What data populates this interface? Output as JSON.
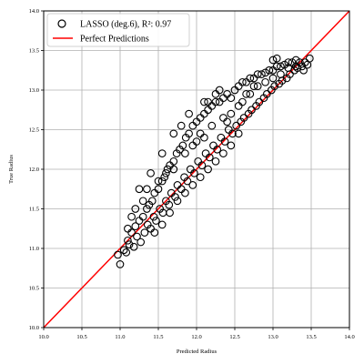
{
  "chart_data": {
    "type": "scatter",
    "xlabel": "Predicted Radius",
    "ylabel": "True Radius",
    "xlim": [
      10.0,
      14.0
    ],
    "ylim": [
      10.0,
      14.0
    ],
    "xticks": [
      "10.0",
      "10.5",
      "11.0",
      "11.5",
      "12.0",
      "12.5",
      "13.0",
      "13.5",
      "14.0"
    ],
    "yticks": [
      "10.0",
      "10.5",
      "11.0",
      "11.5",
      "12.0",
      "12.5",
      "13.0",
      "13.5",
      "14.0"
    ],
    "grid": true,
    "legend_position": "upper-left",
    "legend": [
      {
        "label": "LASSO (deg.6), R²: 0.97",
        "kind": "marker"
      },
      {
        "label": "Perfect Predictions",
        "kind": "line"
      }
    ],
    "series": [
      {
        "name": "LASSO (deg.6), R²: 0.97",
        "marker": "open-circle",
        "color": "#000000",
        "points": [
          [
            10.97,
            10.92
          ],
          [
            11.0,
            10.8
          ],
          [
            11.05,
            10.98
          ],
          [
            11.1,
            11.1
          ],
          [
            11.08,
            10.95
          ],
          [
            11.12,
            11.05
          ],
          [
            11.15,
            11.2
          ],
          [
            11.18,
            11.02
          ],
          [
            11.2,
            11.28
          ],
          [
            11.22,
            11.15
          ],
          [
            11.25,
            11.35
          ],
          [
            11.27,
            11.08
          ],
          [
            11.3,
            11.4
          ],
          [
            11.32,
            11.2
          ],
          [
            11.35,
            11.5
          ],
          [
            11.36,
            11.3
          ],
          [
            11.38,
            11.55
          ],
          [
            11.4,
            11.25
          ],
          [
            11.42,
            11.6
          ],
          [
            11.44,
            11.4
          ],
          [
            11.45,
            11.7
          ],
          [
            11.47,
            11.35
          ],
          [
            11.5,
            11.75
          ],
          [
            11.52,
            11.5
          ],
          [
            11.55,
            11.85
          ],
          [
            11.56,
            11.45
          ],
          [
            11.58,
            11.9
          ],
          [
            11.6,
            11.6
          ],
          [
            11.62,
            12.0
          ],
          [
            11.64,
            11.55
          ],
          [
            11.65,
            12.05
          ],
          [
            11.67,
            11.7
          ],
          [
            11.7,
            12.1
          ],
          [
            11.72,
            11.65
          ],
          [
            11.74,
            12.2
          ],
          [
            11.75,
            11.8
          ],
          [
            11.78,
            12.25
          ],
          [
            11.8,
            11.75
          ],
          [
            11.82,
            12.3
          ],
          [
            11.84,
            11.9
          ],
          [
            11.86,
            12.4
          ],
          [
            11.88,
            11.85
          ],
          [
            11.9,
            12.45
          ],
          [
            11.92,
            12.0
          ],
          [
            11.95,
            12.55
          ],
          [
            11.97,
            11.95
          ],
          [
            12.0,
            12.6
          ],
          [
            12.02,
            12.1
          ],
          [
            12.05,
            12.65
          ],
          [
            12.07,
            12.05
          ],
          [
            12.1,
            12.7
          ],
          [
            12.12,
            12.2
          ],
          [
            12.15,
            12.75
          ],
          [
            12.17,
            12.15
          ],
          [
            12.2,
            12.8
          ],
          [
            12.22,
            12.3
          ],
          [
            12.25,
            12.85
          ],
          [
            12.27,
            12.25
          ],
          [
            12.3,
            12.85
          ],
          [
            12.32,
            12.4
          ],
          [
            12.35,
            12.9
          ],
          [
            12.37,
            12.35
          ],
          [
            12.4,
            12.95
          ],
          [
            12.42,
            12.5
          ],
          [
            12.45,
            12.9
          ],
          [
            12.47,
            12.45
          ],
          [
            12.5,
            13.0
          ],
          [
            12.52,
            12.55
          ],
          [
            12.55,
            13.05
          ],
          [
            12.58,
            12.6
          ],
          [
            12.6,
            13.1
          ],
          [
            12.62,
            12.65
          ],
          [
            12.65,
            13.1
          ],
          [
            12.68,
            12.7
          ],
          [
            12.7,
            13.15
          ],
          [
            12.72,
            12.75
          ],
          [
            12.75,
            13.15
          ],
          [
            12.78,
            12.8
          ],
          [
            12.8,
            13.2
          ],
          [
            12.82,
            12.85
          ],
          [
            12.85,
            13.2
          ],
          [
            12.88,
            12.9
          ],
          [
            12.9,
            13.22
          ],
          [
            12.92,
            12.95
          ],
          [
            12.95,
            13.25
          ],
          [
            12.98,
            13.0
          ],
          [
            13.0,
            13.25
          ],
          [
            13.02,
            13.05
          ],
          [
            13.05,
            13.3
          ],
          [
            13.08,
            13.08
          ],
          [
            13.1,
            13.3
          ],
          [
            13.12,
            13.12
          ],
          [
            13.15,
            13.32
          ],
          [
            13.18,
            13.15
          ],
          [
            13.2,
            13.35
          ],
          [
            13.22,
            13.2
          ],
          [
            13.25,
            13.35
          ],
          [
            13.28,
            13.25
          ],
          [
            13.3,
            13.38
          ],
          [
            13.32,
            13.28
          ],
          [
            13.35,
            13.35
          ],
          [
            13.38,
            13.3
          ],
          [
            13.42,
            13.35
          ],
          [
            13.45,
            13.32
          ],
          [
            13.48,
            13.4
          ],
          [
            13.4,
            13.25
          ],
          [
            11.25,
            11.75
          ],
          [
            11.4,
            11.95
          ],
          [
            11.55,
            12.2
          ],
          [
            11.7,
            12.45
          ],
          [
            11.8,
            12.55
          ],
          [
            11.9,
            12.7
          ],
          [
            12.0,
            12.35
          ],
          [
            12.1,
            12.85
          ],
          [
            12.15,
            12.85
          ],
          [
            12.25,
            12.95
          ],
          [
            12.3,
            13.0
          ],
          [
            12.1,
            12.4
          ],
          [
            11.45,
            11.2
          ],
          [
            11.55,
            11.3
          ],
          [
            11.65,
            11.45
          ],
          [
            11.75,
            11.6
          ],
          [
            11.85,
            11.7
          ],
          [
            11.95,
            11.8
          ],
          [
            12.05,
            11.9
          ],
          [
            12.15,
            12.0
          ],
          [
            12.25,
            12.1
          ],
          [
            12.35,
            12.2
          ],
          [
            12.45,
            12.3
          ],
          [
            12.55,
            12.45
          ],
          [
            11.1,
            11.25
          ],
          [
            11.15,
            11.4
          ],
          [
            11.2,
            11.5
          ],
          [
            11.3,
            11.6
          ],
          [
            11.35,
            11.75
          ],
          [
            11.5,
            11.85
          ],
          [
            11.6,
            11.95
          ],
          [
            11.7,
            12.0
          ],
          [
            11.85,
            12.2
          ],
          [
            11.95,
            12.3
          ],
          [
            12.05,
            12.45
          ],
          [
            12.2,
            12.55
          ],
          [
            12.35,
            12.65
          ],
          [
            12.45,
            12.7
          ],
          [
            12.6,
            12.85
          ],
          [
            12.7,
            12.95
          ],
          [
            12.8,
            13.05
          ],
          [
            12.9,
            13.1
          ],
          [
            13.0,
            13.15
          ],
          [
            13.1,
            13.2
          ],
          [
            13.2,
            13.28
          ],
          [
            13.3,
            13.3
          ],
          [
            12.65,
            12.95
          ],
          [
            12.75,
            13.05
          ],
          [
            13.0,
            13.38
          ],
          [
            13.05,
            13.4
          ],
          [
            12.55,
            12.8
          ],
          [
            12.4,
            12.6
          ]
        ]
      },
      {
        "name": "Perfect Predictions",
        "type": "line",
        "color": "#ff0000",
        "x": [
          10.0,
          14.0
        ],
        "y": [
          10.0,
          14.0
        ]
      }
    ]
  }
}
